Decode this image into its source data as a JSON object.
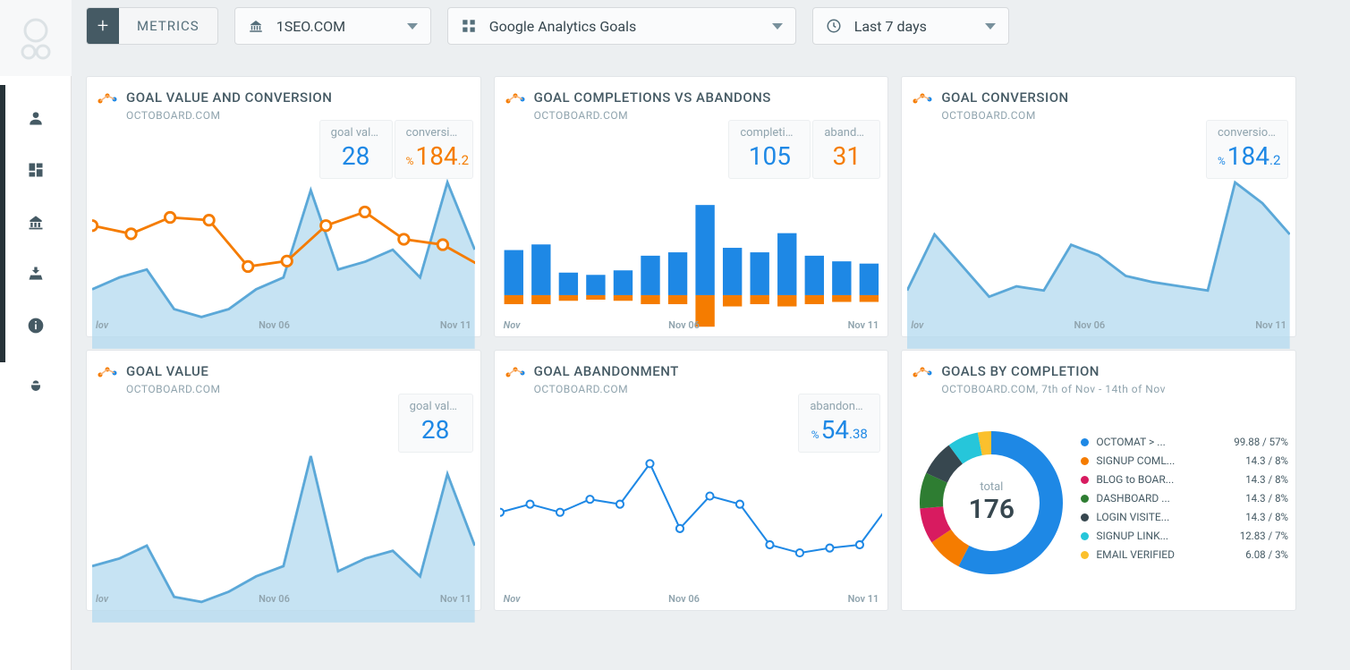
{
  "colors": {
    "blue": "#1e88e5",
    "lightblue_fill": "#b3d9ef",
    "lightblue_stroke": "#5ba8d8",
    "orange": "#f57c00",
    "orange_fill": "#f57c00",
    "bg": "#eceff1",
    "card_bg": "#ffffff",
    "text_dark": "#455a64",
    "text_muted": "#90a4ae"
  },
  "topbar": {
    "metrics_label": "METRICS",
    "site_label": "1SEO.COM",
    "source_label": "Google Analytics Goals",
    "range_label": "Last 7 days"
  },
  "cards": {
    "c1": {
      "title": "GOAL VALUE AND CONVERSION",
      "sub": "OCTOBOARD.COM",
      "stat1_label": "goal value",
      "stat1_value": "28",
      "stat2_label": "conversion ...",
      "stat2_prefix": "%",
      "stat2_value": "184",
      "stat2_decimal": ".2",
      "xticks": [
        "lov",
        "Nov 06",
        "Nov 11"
      ],
      "orange_line": {
        "type": "line",
        "color": "#f57c00",
        "stroke_width": 2,
        "y": [
          75,
          72,
          78,
          77,
          60,
          62,
          75,
          80,
          70,
          68,
          60,
          62,
          65,
          85,
          55
        ]
      },
      "orange_faded": {
        "type": "line",
        "color": "#f9c089",
        "stroke_width": 2,
        "opacity": 0.6,
        "y": [
          75,
          72,
          78,
          77,
          60,
          62,
          75,
          80,
          70,
          68,
          60,
          62,
          65,
          85,
          55
        ]
      },
      "blue_area": {
        "type": "area",
        "fill": "#b3d9ef",
        "stroke": "#5ba8d8",
        "y": [
          15,
          18,
          20,
          10,
          8,
          10,
          15,
          18,
          40,
          20,
          22,
          25,
          18,
          42,
          25
        ]
      }
    },
    "c2": {
      "title": "GOAL COMPLETIONS VS ABANDONS",
      "sub": "OCTOBOARD.COM",
      "stat1_label": "completions",
      "stat1_value": "105",
      "stat2_label": "abandons",
      "stat2_value": "31",
      "xticks": [
        "Nov",
        "Nov 06",
        "Nov 11"
      ],
      "bars": {
        "type": "stacked_bar",
        "blue": "#1e88e5",
        "orange": "#f57c00",
        "completions": [
          40,
          45,
          20,
          18,
          22,
          35,
          38,
          80,
          42,
          38,
          55,
          35,
          30,
          28
        ],
        "abandons": [
          8,
          8,
          5,
          4,
          5,
          8,
          8,
          28,
          10,
          8,
          10,
          8,
          6,
          6
        ]
      }
    },
    "c3": {
      "title": "GOAL CONVERSION",
      "sub": "OCTOBOARD.COM",
      "stat1_label": "conversion ...",
      "stat1_prefix": "%",
      "stat1_value": "184",
      "stat1_decimal": ".2",
      "xticks": [
        "lov",
        "Nov 06",
        "Nov 11"
      ],
      "area": {
        "type": "area",
        "fill": "#b3d9ef",
        "stroke": "#5ba8d8",
        "y": [
          28,
          55,
          40,
          25,
          30,
          28,
          50,
          45,
          35,
          32,
          30,
          28,
          80,
          70,
          55
        ]
      }
    },
    "c4": {
      "title": "GOAL VALUE",
      "sub": "OCTOBOARD.COM",
      "stat1_label": "goal value",
      "stat1_value": "28",
      "xticks": [
        "lov",
        "Nov 06",
        "Nov 11"
      ],
      "area": {
        "type": "area",
        "fill": "#b3d9ef",
        "stroke": "#5ba8d8",
        "y": [
          22,
          25,
          30,
          10,
          8,
          12,
          18,
          22,
          65,
          20,
          25,
          28,
          18,
          58,
          30
        ]
      }
    },
    "c5": {
      "title": "GOAL ABANDONMENT",
      "sub": "OCTOBOARD.COM",
      "stat1_label": "abandonm...",
      "stat1_prefix": "%",
      "stat1_value": "54",
      "stat1_decimal": ".38",
      "xticks": [
        "Nov",
        "Nov 06",
        "Nov 11"
      ],
      "line": {
        "type": "line",
        "color": "#1e88e5",
        "stroke_width": 2,
        "marker": "circle",
        "y": [
          50,
          55,
          50,
          58,
          55,
          80,
          40,
          60,
          55,
          30,
          25,
          28,
          30,
          55
        ]
      }
    },
    "c6": {
      "title": "GOALS BY COMPLETION",
      "sub": "OCTOBOARD.COM, 7th of Nov - 14th of Nov",
      "total_label": "total",
      "total_value": "176",
      "donut": {
        "type": "donut",
        "slices": [
          {
            "label": "OCTOMAT > ...",
            "value": 99.88,
            "pct": 57,
            "color": "#1e88e5"
          },
          {
            "label": "SIGNUP COML...",
            "value": 14.3,
            "pct": 8,
            "color": "#f57c00"
          },
          {
            "label": "BLOG to BOAR...",
            "value": 14.3,
            "pct": 8,
            "color": "#d81b60"
          },
          {
            "label": "DASHBOARD ...",
            "value": 14.3,
            "pct": 8,
            "color": "#2e7d32"
          },
          {
            "label": "LOGIN VISITE...",
            "value": 14.3,
            "pct": 8,
            "color": "#37474f"
          },
          {
            "label": "SIGNUP LINK...",
            "value": 12.83,
            "pct": 7,
            "color": "#26c6da"
          },
          {
            "label": "EMAIL VERIFIED",
            "value": 6.08,
            "pct": 3,
            "color": "#fbc02d"
          }
        ]
      }
    }
  }
}
